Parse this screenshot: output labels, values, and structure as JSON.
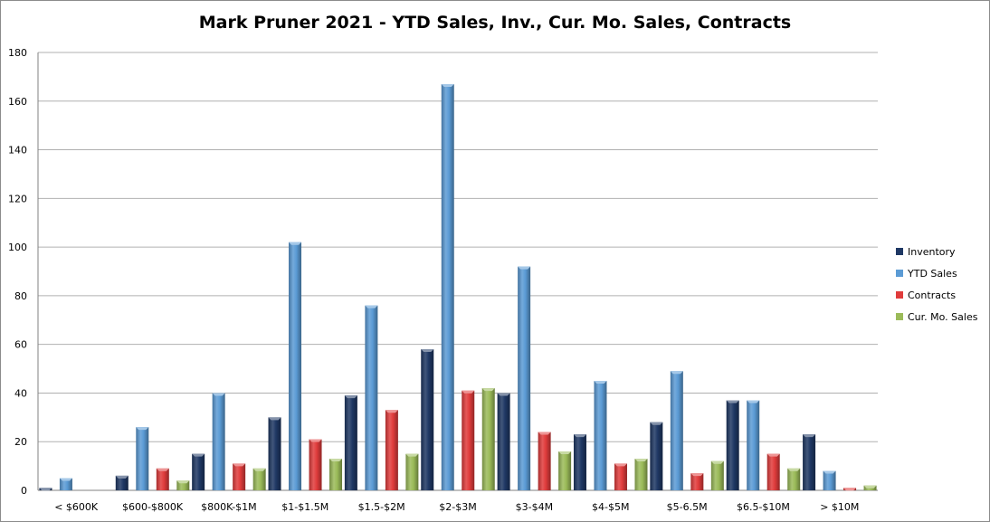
{
  "chart_data": {
    "type": "bar",
    "title": "Mark Pruner 2021 - YTD Sales, Inv., Cur. Mo. Sales, Contracts",
    "xlabel": "",
    "ylabel": "",
    "ylim": [
      0,
      180
    ],
    "yticks": [
      0,
      20,
      40,
      60,
      80,
      100,
      120,
      140,
      160,
      180
    ],
    "grid": true,
    "legend_position": "right",
    "categories": [
      "< $600K",
      "$600-$800K",
      "$800K-$1M",
      "$1-$1.5M",
      "$1.5-$2M",
      "$2-$3M",
      "$3-$4M",
      "$4-$5M",
      "$5-6.5M",
      "$6.5-$10M",
      "> $10M"
    ],
    "series": [
      {
        "name": "Inventory",
        "color": "#1f3864",
        "values": [
          1,
          6,
          15,
          30,
          39,
          58,
          40,
          23,
          28,
          37,
          23
        ]
      },
      {
        "name": "YTD Sales",
        "color": "#5b9bd5",
        "values": [
          5,
          26,
          40,
          102,
          76,
          167,
          92,
          45,
          49,
          37,
          8
        ]
      },
      {
        "name": "Contracts",
        "color": "#e03c3c",
        "values": [
          0,
          9,
          11,
          21,
          33,
          41,
          24,
          11,
          7,
          15,
          1
        ]
      },
      {
        "name": "Cur. Mo. Sales",
        "color": "#9bbb59",
        "values": [
          0,
          4,
          9,
          13,
          15,
          42,
          16,
          13,
          12,
          9,
          2
        ]
      }
    ]
  }
}
